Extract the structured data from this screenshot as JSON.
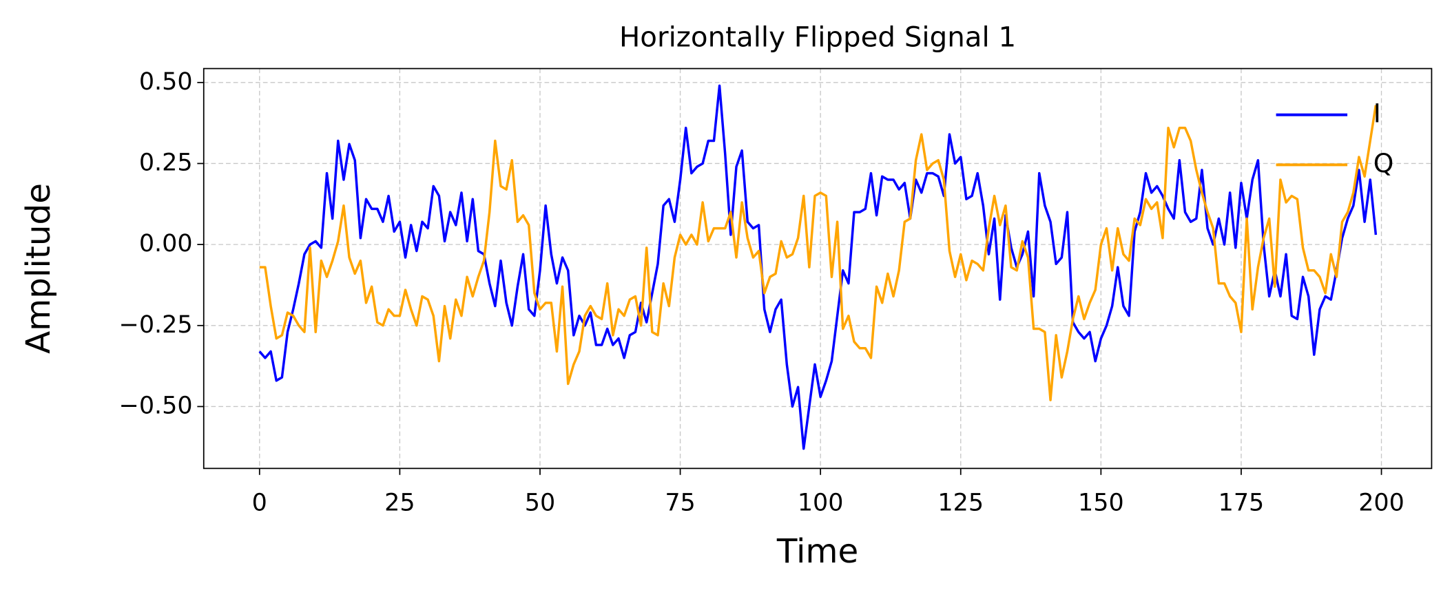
{
  "chart_data": {
    "type": "line",
    "title": "Horizontally Flipped Signal 1",
    "x_label": "Time",
    "y_label": "Amplitude",
    "x": [
      0,
      1,
      2,
      3,
      4,
      5,
      6,
      7,
      8,
      9,
      10,
      11,
      12,
      13,
      14,
      15,
      16,
      17,
      18,
      19,
      20,
      21,
      22,
      23,
      24,
      25,
      26,
      27,
      28,
      29,
      30,
      31,
      32,
      33,
      34,
      35,
      36,
      37,
      38,
      39,
      40,
      41,
      42,
      43,
      44,
      45,
      46,
      47,
      48,
      49,
      50,
      51,
      52,
      53,
      54,
      55,
      56,
      57,
      58,
      59,
      60,
      61,
      62,
      63,
      64,
      65,
      66,
      67,
      68,
      69,
      70,
      71,
      72,
      73,
      74,
      75,
      76,
      77,
      78,
      79,
      80,
      81,
      82,
      83,
      84,
      85,
      86,
      87,
      88,
      89,
      90,
      91,
      92,
      93,
      94,
      95,
      96,
      97,
      98,
      99,
      100,
      101,
      102,
      103,
      104,
      105,
      106,
      107,
      108,
      109,
      110,
      111,
      112,
      113,
      114,
      115,
      116,
      117,
      118,
      119,
      120,
      121,
      122,
      123,
      124,
      125,
      126,
      127,
      128,
      129,
      130,
      131,
      132,
      133,
      134,
      135,
      136,
      137,
      138,
      139,
      140,
      141,
      142,
      143,
      144,
      145,
      146,
      147,
      148,
      149,
      150,
      151,
      152,
      153,
      154,
      155,
      156,
      157,
      158,
      159,
      160,
      161,
      162,
      163,
      164,
      165,
      166,
      167,
      168,
      169,
      170,
      171,
      172,
      173,
      174,
      175,
      176,
      177,
      178,
      179,
      180,
      181,
      182,
      183,
      184,
      185,
      186,
      187,
      188,
      189,
      190,
      191,
      192,
      193,
      194,
      195,
      196,
      197,
      198,
      199
    ],
    "series": [
      {
        "name": "I",
        "color": "#0000ff",
        "values": [
          -0.33,
          -0.35,
          -0.33,
          -0.42,
          -0.41,
          -0.27,
          -0.2,
          -0.12,
          -0.03,
          0.0,
          0.01,
          -0.01,
          0.22,
          0.08,
          0.32,
          0.2,
          0.31,
          0.26,
          0.02,
          0.14,
          0.11,
          0.11,
          0.07,
          0.15,
          0.04,
          0.07,
          -0.04,
          0.06,
          -0.02,
          0.07,
          0.05,
          0.18,
          0.15,
          0.01,
          0.1,
          0.06,
          0.16,
          0.01,
          0.14,
          -0.02,
          -0.03,
          -0.12,
          -0.19,
          -0.05,
          -0.18,
          -0.25,
          -0.13,
          -0.03,
          -0.2,
          -0.22,
          -0.08,
          0.12,
          -0.03,
          -0.12,
          -0.04,
          -0.08,
          -0.28,
          -0.22,
          -0.25,
          -0.21,
          -0.31,
          -0.31,
          -0.26,
          -0.31,
          -0.29,
          -0.35,
          -0.28,
          -0.27,
          -0.18,
          -0.24,
          -0.15,
          -0.06,
          0.12,
          0.14,
          0.07,
          0.2,
          0.36,
          0.22,
          0.24,
          0.25,
          0.32,
          0.32,
          0.49,
          0.28,
          0.03,
          0.24,
          0.29,
          0.07,
          0.05,
          0.06,
          -0.2,
          -0.27,
          -0.2,
          -0.17,
          -0.37,
          -0.5,
          -0.44,
          -0.63,
          -0.5,
          -0.37,
          -0.47,
          -0.42,
          -0.36,
          -0.22,
          -0.08,
          -0.12,
          0.1,
          0.1,
          0.11,
          0.22,
          0.09,
          0.21,
          0.2,
          0.2,
          0.17,
          0.19,
          0.08,
          0.2,
          0.16,
          0.22,
          0.22,
          0.21,
          0.15,
          0.34,
          0.25,
          0.27,
          0.14,
          0.15,
          0.22,
          0.12,
          -0.03,
          0.08,
          -0.17,
          0.09,
          -0.01,
          -0.07,
          -0.03,
          0.04,
          -0.16,
          0.22,
          0.12,
          0.07,
          -0.06,
          -0.04,
          0.1,
          -0.24,
          -0.27,
          -0.29,
          -0.27,
          -0.36,
          -0.29,
          -0.25,
          -0.19,
          -0.07,
          -0.19,
          -0.22,
          0.04,
          0.1,
          0.22,
          0.16,
          0.18,
          0.15,
          0.11,
          0.08,
          0.26,
          0.1,
          0.07,
          0.08,
          0.23,
          0.05,
          0.0,
          0.08,
          0.0,
          0.16,
          -0.01,
          0.19,
          0.08,
          0.2,
          0.26,
          0.0,
          -0.16,
          -0.08,
          -0.16,
          -0.03,
          -0.22,
          -0.23,
          -0.1,
          -0.16,
          -0.34,
          -0.2,
          -0.16,
          -0.17,
          -0.08,
          0.02,
          0.08,
          0.12,
          0.23,
          0.07,
          0.2,
          0.03
        ]
      },
      {
        "name": "Q",
        "color": "#ffa500",
        "values": [
          -0.07,
          -0.07,
          -0.19,
          -0.29,
          -0.28,
          -0.21,
          -0.22,
          -0.25,
          -0.27,
          -0.01,
          -0.27,
          -0.05,
          -0.1,
          -0.05,
          0.01,
          0.12,
          -0.04,
          -0.09,
          -0.05,
          -0.18,
          -0.13,
          -0.24,
          -0.25,
          -0.2,
          -0.22,
          -0.22,
          -0.14,
          -0.2,
          -0.25,
          -0.16,
          -0.17,
          -0.22,
          -0.36,
          -0.19,
          -0.29,
          -0.17,
          -0.22,
          -0.1,
          -0.16,
          -0.1,
          -0.05,
          0.1,
          0.32,
          0.18,
          0.17,
          0.26,
          0.07,
          0.09,
          0.06,
          -0.15,
          -0.2,
          -0.18,
          -0.18,
          -0.33,
          -0.13,
          -0.43,
          -0.37,
          -0.33,
          -0.22,
          -0.19,
          -0.22,
          -0.23,
          -0.12,
          -0.28,
          -0.2,
          -0.22,
          -0.17,
          -0.16,
          -0.25,
          -0.01,
          -0.27,
          -0.28,
          -0.12,
          -0.19,
          -0.04,
          0.03,
          0.0,
          0.03,
          0.0,
          0.13,
          0.01,
          0.05,
          0.05,
          0.05,
          0.1,
          -0.04,
          0.13,
          0.02,
          -0.04,
          -0.02,
          -0.15,
          -0.1,
          -0.09,
          0.01,
          -0.04,
          -0.03,
          0.02,
          0.15,
          -0.07,
          0.15,
          0.16,
          0.15,
          -0.1,
          0.07,
          -0.26,
          -0.22,
          -0.3,
          -0.32,
          -0.32,
          -0.35,
          -0.13,
          -0.18,
          -0.09,
          -0.16,
          -0.08,
          0.07,
          0.08,
          0.26,
          0.34,
          0.23,
          0.25,
          0.26,
          0.2,
          -0.02,
          -0.1,
          -0.03,
          -0.11,
          -0.05,
          -0.06,
          -0.08,
          0.05,
          0.15,
          0.06,
          0.12,
          -0.07,
          -0.08,
          0.01,
          -0.04,
          -0.26,
          -0.26,
          -0.27,
          -0.48,
          -0.28,
          -0.41,
          -0.33,
          -0.23,
          -0.16,
          -0.23,
          -0.18,
          -0.14,
          0.0,
          0.05,
          -0.08,
          0.05,
          -0.03,
          -0.05,
          0.08,
          0.06,
          0.14,
          0.11,
          0.13,
          0.02,
          0.36,
          0.3,
          0.36,
          0.36,
          0.32,
          0.23,
          0.16,
          0.1,
          0.05,
          -0.12,
          -0.12,
          -0.16,
          -0.18,
          -0.27,
          0.08,
          -0.2,
          -0.07,
          0.02,
          0.08,
          -0.13,
          0.2,
          0.13,
          0.15,
          0.14,
          -0.01,
          -0.08,
          -0.08,
          -0.1,
          -0.15,
          -0.03,
          -0.1,
          0.07,
          0.1,
          0.16,
          0.27,
          0.21,
          0.32,
          0.43
        ]
      }
    ],
    "xlim": [
      -9.95,
      208.95
    ],
    "ylim": [
      -0.691,
      0.543
    ],
    "xticks": [
      0,
      25,
      50,
      75,
      100,
      125,
      150,
      175,
      200
    ],
    "yticks": [
      {
        "value": -0.5,
        "label": "−0.50"
      },
      {
        "value": -0.25,
        "label": "−0.25"
      },
      {
        "value": 0,
        "label": "0.00"
      },
      {
        "value": 0.25,
        "label": "0.25"
      },
      {
        "value": 0.5,
        "label": "0.50"
      }
    ],
    "grid": true,
    "legend": "upper right"
  }
}
